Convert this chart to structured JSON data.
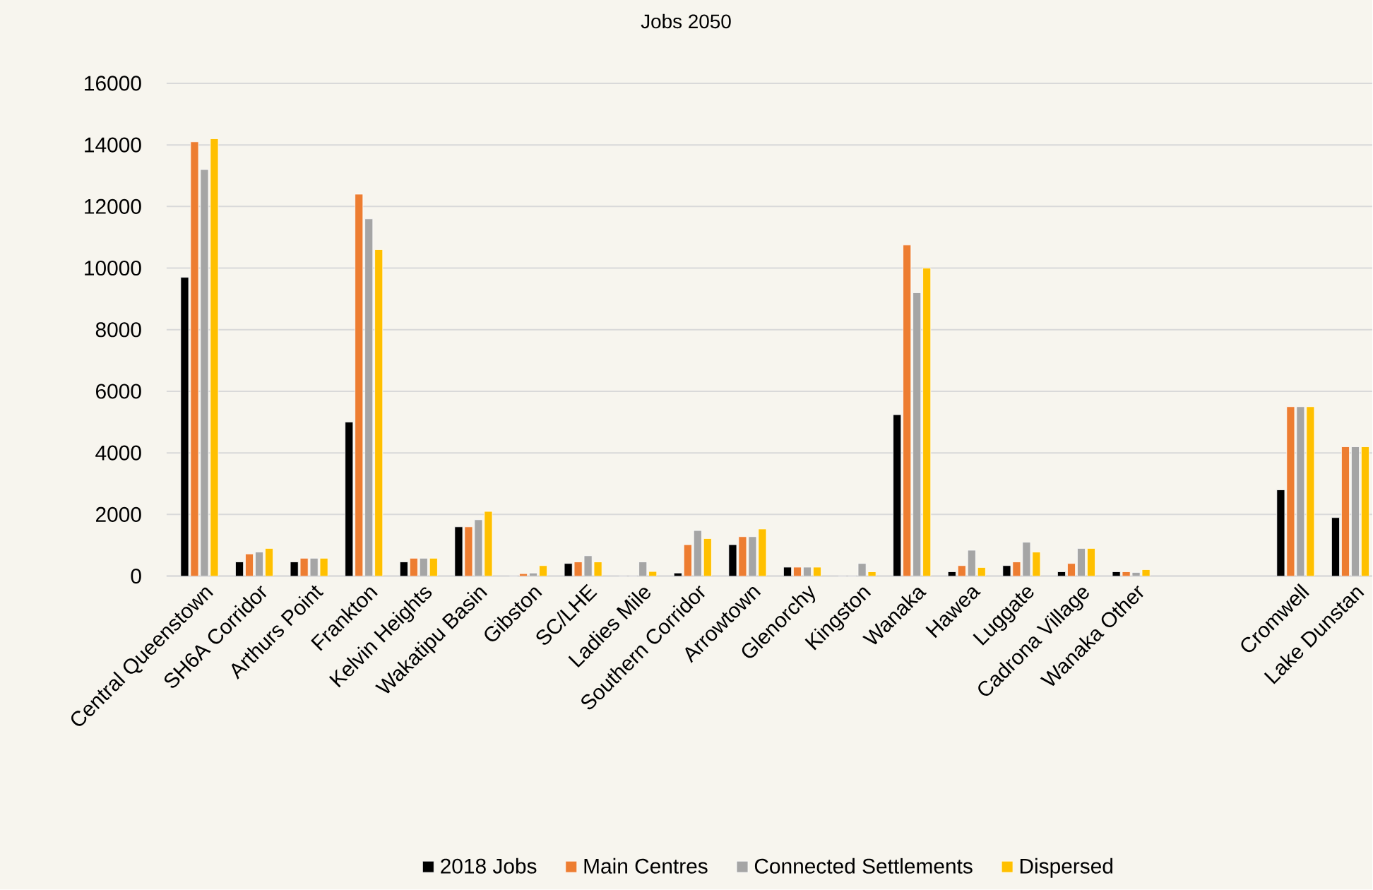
{
  "chart_data": {
    "type": "bar",
    "title": "Jobs 2050",
    "categories": [
      "Central Queenstown",
      "SH6A Corridor",
      "Arthurs Point",
      "Frankton",
      "Kelvin Heights",
      "Wakatipu Basin",
      "Gibston",
      "SC/LHE",
      "Ladies Mile",
      "Southern Corridor",
      "Arrowtown",
      "Glenorchy",
      "Kingston",
      "Wanaka",
      "Hawea",
      "Luggate",
      "Cadrona Village",
      "Wanaka Other",
      null,
      null,
      "Cromwell",
      "Lake Dunstan"
    ],
    "series": [
      {
        "name": "2018 Jobs",
        "color": "#000000",
        "values": [
          9700,
          460,
          460,
          5000,
          460,
          1600,
          0,
          410,
          0,
          100,
          1020,
          290,
          0,
          5240,
          140,
          340,
          140,
          140,
          null,
          null,
          2800,
          1900
        ]
      },
      {
        "name": "Main Centres",
        "color": "#ed7d31",
        "values": [
          14100,
          720,
          580,
          12400,
          580,
          1600,
          80,
          460,
          0,
          1020,
          1280,
          290,
          0,
          10750,
          340,
          460,
          410,
          140,
          null,
          null,
          5500,
          4200
        ]
      },
      {
        "name": "Connected Settlements",
        "color": "#a5a5a5",
        "values": [
          13200,
          780,
          580,
          11600,
          580,
          1830,
          100,
          660,
          460,
          1480,
          1280,
          290,
          410,
          9200,
          840,
          1100,
          900,
          120,
          null,
          null,
          5500,
          4200
        ]
      },
      {
        "name": "Dispersed",
        "color": "#ffc000",
        "values": [
          14200,
          900,
          580,
          10600,
          580,
          2100,
          340,
          460,
          150,
          1220,
          1530,
          290,
          140,
          10000,
          280,
          780,
          900,
          210,
          null,
          null,
          5500,
          4200
        ]
      }
    ],
    "ylim": [
      0,
      16000
    ],
    "yticks": [
      0,
      2000,
      4000,
      6000,
      8000,
      10000,
      12000,
      14000,
      16000
    ],
    "grid": "y",
    "legend": "bottom"
  }
}
